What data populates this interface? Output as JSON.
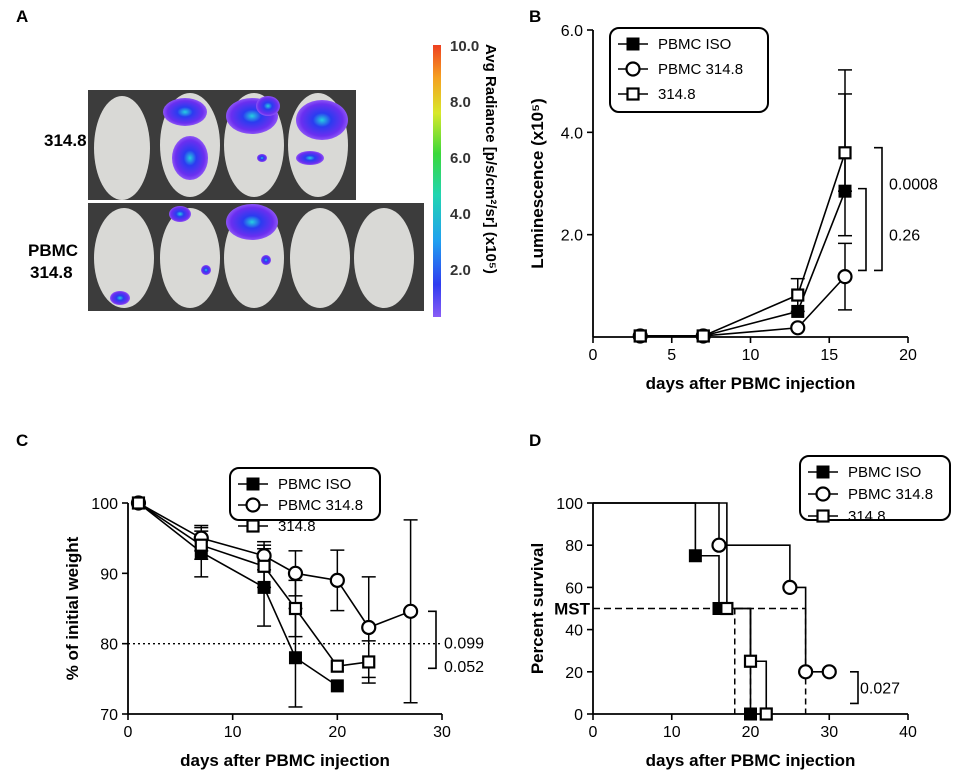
{
  "colors": {
    "series": "#000000",
    "mouse": "#d9d9d6",
    "imaging_bg": "#3c3c3c"
  },
  "panels": {
    "a": {
      "label": "A",
      "row_labels": [
        "314.8",
        "PBMC",
        "314.8"
      ],
      "colorbar_title": "Avg Radiance [p/s/cm²/sr] (x10⁵)",
      "colorbar_ticks": [
        "10.0",
        "8.0",
        "6.0",
        "4.0",
        "2.0"
      ]
    },
    "b": {
      "label": "B"
    },
    "c": {
      "label": "C"
    },
    "d": {
      "label": "D",
      "mst_label": "MST"
    }
  },
  "chart_data": [
    {
      "panel": "B",
      "type": "line",
      "xlabel": "days after PBMC injection",
      "ylabel": "Luminescence (x10⁵)",
      "xlim": [
        0,
        20
      ],
      "ylim": [
        0,
        6
      ],
      "xticks": [
        "0",
        "5",
        "10",
        "15",
        "20"
      ],
      "yticks": [
        "2.0",
        "4.0",
        "6.0"
      ],
      "legend": [
        "PBMC ISO",
        "PBMC 314.8",
        "314.8"
      ],
      "series": [
        {
          "name": "PBMC ISO",
          "marker": "filled-square",
          "x": [
            3,
            7,
            13,
            16
          ],
          "y": [
            0.02,
            0.02,
            0.5,
            2.85
          ],
          "err": [
            0,
            0,
            0,
            0
          ]
        },
        {
          "name": "PBMC 314.8",
          "marker": "open-circle",
          "x": [
            3,
            7,
            13,
            16
          ],
          "y": [
            0.02,
            0.02,
            0.18,
            1.18
          ],
          "err": [
            0,
            0,
            0,
            0.65
          ]
        },
        {
          "name": "314.8",
          "marker": "open-square",
          "x": [
            3,
            7,
            13,
            16
          ],
          "y": [
            0.02,
            0.02,
            0.82,
            3.6
          ],
          "err": [
            0,
            0,
            0.32,
            1.62
          ]
        }
      ],
      "error_bar_extra": {
        "series": "PBMC ISO",
        "x": 16,
        "y_high": 4.75
      },
      "annotations": [
        {
          "text": "0.0008",
          "y_range": [
            1.3,
            3.7
          ]
        },
        {
          "text": "0.26",
          "y_range": [
            1.3,
            2.9
          ]
        }
      ]
    },
    {
      "panel": "C",
      "type": "line",
      "xlabel": "days after PBMC injection",
      "ylabel": "% of initial weight",
      "xlim": [
        0,
        30
      ],
      "ylim": [
        70,
        100
      ],
      "xticks": [
        "0",
        "10",
        "20",
        "30"
      ],
      "yticks": [
        "70",
        "80",
        "90",
        "100"
      ],
      "reference_line": 80,
      "legend": [
        "PBMC ISO",
        "PBMC 314.8",
        "314.8"
      ],
      "series": [
        {
          "name": "PBMC ISO",
          "marker": "filled-square",
          "x": [
            1,
            7,
            13,
            16,
            20
          ],
          "y": [
            100,
            93,
            88,
            78,
            74
          ],
          "err": [
            0,
            3.5,
            5.5,
            7,
            0
          ]
        },
        {
          "name": "PBMC 314.8",
          "marker": "open-circle",
          "x": [
            1,
            7,
            13,
            16,
            20,
            23,
            27
          ],
          "y": [
            100,
            95,
            92.5,
            90,
            89,
            82.3,
            84.6
          ],
          "err": [
            0,
            1.8,
            2,
            3.2,
            4.3,
            0,
            13
          ]
        },
        {
          "name": "314.8",
          "marker": "open-square",
          "x": [
            1,
            7,
            13,
            16,
            20,
            23
          ],
          "y": [
            100,
            94,
            91,
            85,
            76.8,
            77.4
          ],
          "err": [
            0,
            2,
            3,
            4,
            0,
            3
          ]
        }
      ],
      "error_bar_extra": {
        "series": "PBMC 314.8",
        "x": 23,
        "y_high": 89.5,
        "y_low": 75.2
      },
      "annotations": [
        {
          "text": "0.099",
          "y_range": [
            76.5,
            84.6
          ]
        },
        {
          "text": "0.052",
          "y_range": [
            76.5,
            80
          ]
        }
      ]
    },
    {
      "panel": "D",
      "type": "line",
      "xlabel": "days after PBMC injection",
      "ylabel": "Percent survival",
      "xlim": [
        0,
        40
      ],
      "ylim": [
        0,
        100
      ],
      "xticks": [
        "0",
        "10",
        "20",
        "30",
        "40"
      ],
      "yticks": [
        "0",
        "20",
        "40",
        "60",
        "80",
        "100"
      ],
      "mst_level": 50,
      "legend": [
        "PBMC ISO",
        "PBMC 314.8",
        "314.8"
      ],
      "series": [
        {
          "name": "PBMC ISO",
          "marker": "filled-square",
          "steps": [
            [
              0,
              100
            ],
            [
              13,
              75
            ],
            [
              16,
              50
            ],
            [
              20,
              0
            ]
          ],
          "markers": [
            [
              13,
              75
            ],
            [
              16,
              50
            ],
            [
              20,
              0
            ]
          ],
          "mst": 18
        },
        {
          "name": "PBMC 314.8",
          "marker": "open-circle",
          "steps": [
            [
              0,
              100
            ],
            [
              16,
              80
            ],
            [
              25,
              60
            ],
            [
              27,
              20
            ],
            [
              30,
              20
            ]
          ],
          "markers": [
            [
              16,
              80
            ],
            [
              25,
              60
            ],
            [
              27,
              20
            ],
            [
              30,
              20
            ]
          ],
          "mst": 27
        },
        {
          "name": "314.8",
          "marker": "open-square",
          "steps": [
            [
              0,
              100
            ],
            [
              17,
              50
            ],
            [
              20,
              25
            ],
            [
              22,
              0
            ]
          ],
          "markers": [
            [
              17,
              50
            ],
            [
              20,
              25
            ],
            [
              22,
              0
            ]
          ],
          "mst": 20
        }
      ],
      "annotations": [
        {
          "text": "0.027",
          "y_range": [
            5,
            20
          ]
        }
      ]
    }
  ]
}
